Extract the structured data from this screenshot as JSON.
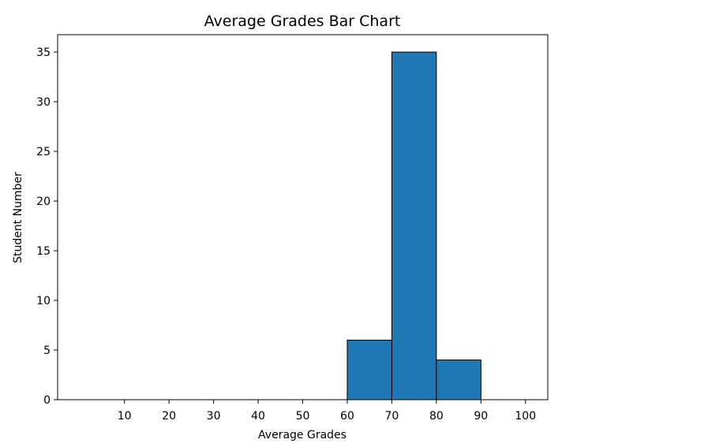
{
  "chart_data": {
    "type": "bar",
    "title": "Average Grades Bar Chart",
    "xlabel": "Average Grades",
    "ylabel": "Student Number",
    "bins": [
      {
        "start": 0,
        "end": 10,
        "value": 0
      },
      {
        "start": 10,
        "end": 20,
        "value": 0
      },
      {
        "start": 20,
        "end": 30,
        "value": 0
      },
      {
        "start": 30,
        "end": 40,
        "value": 0
      },
      {
        "start": 40,
        "end": 50,
        "value": 0
      },
      {
        "start": 50,
        "end": 60,
        "value": 0
      },
      {
        "start": 60,
        "end": 70,
        "value": 6
      },
      {
        "start": 70,
        "end": 80,
        "value": 35
      },
      {
        "start": 80,
        "end": 90,
        "value": 4
      },
      {
        "start": 90,
        "end": 100,
        "value": 0
      }
    ],
    "xticks": [
      10,
      20,
      30,
      40,
      50,
      60,
      70,
      80,
      90,
      100
    ],
    "yticks": [
      0,
      5,
      10,
      15,
      20,
      25,
      30,
      35
    ],
    "xlim": [
      -5,
      105
    ],
    "ylim": [
      0,
      36.75
    ],
    "grid": false,
    "legend": "none",
    "bar_color": "#1f77b4",
    "edge_color": "#000000"
  }
}
